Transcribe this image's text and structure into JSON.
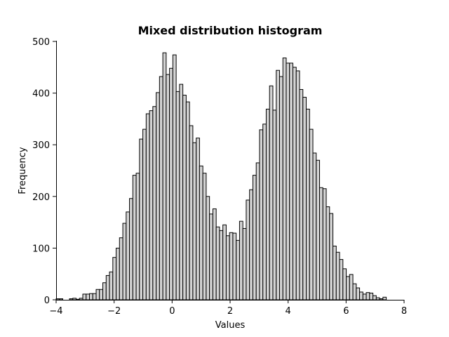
{
  "chart_data": {
    "type": "bar",
    "title": "Mixed distribution histogram",
    "xlabel": "Values",
    "ylabel": "Frequency",
    "xlim": [
      -4,
      8
    ],
    "ylim": [
      0,
      500
    ],
    "xticks": [
      -4,
      -2,
      0,
      2,
      4,
      6,
      8
    ],
    "yticks": [
      0,
      100,
      200,
      300,
      400,
      500
    ],
    "grid": false,
    "bar_color": "#d3d3d3",
    "edge_color": "#000000",
    "bin_start": -4.0,
    "bin_width": 0.115,
    "counts": [
      2,
      2,
      0,
      0,
      2,
      3,
      1,
      3,
      11,
      11,
      12,
      12,
      20,
      20,
      33,
      47,
      54,
      82,
      100,
      120,
      148,
      170,
      196,
      241,
      245,
      311,
      330,
      360,
      366,
      374,
      401,
      432,
      478,
      436,
      448,
      474,
      403,
      417,
      396,
      383,
      337,
      304,
      313,
      259,
      245,
      200,
      166,
      176,
      141,
      134,
      145,
      124,
      130,
      129,
      115,
      152,
      138,
      193,
      213,
      241,
      265,
      329,
      340,
      369,
      414,
      367,
      444,
      432,
      468,
      458,
      458,
      450,
      443,
      407,
      392,
      369,
      330,
      284,
      270,
      217,
      215,
      180,
      167,
      104,
      92,
      78,
      60,
      45,
      49,
      31,
      23,
      15,
      11,
      14,
      13,
      8,
      4,
      2,
      5
    ]
  }
}
